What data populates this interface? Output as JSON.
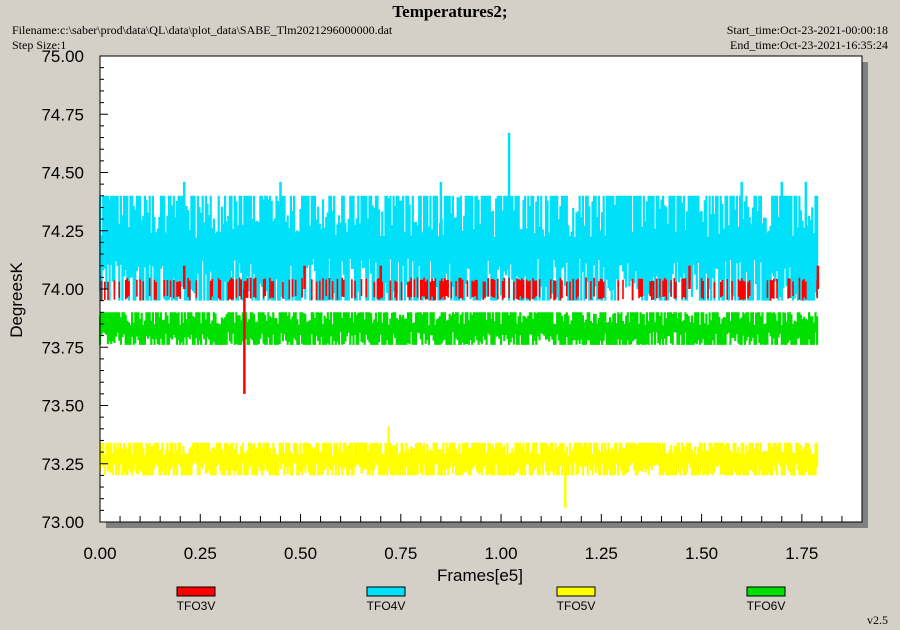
{
  "header": {
    "title": "Temperatures2;",
    "filename": "Filename:c:\\saber\\prod\\data\\QL\\data\\plot_data\\SABE_Tlm2021296000000.dat",
    "step_size": "Step Size:1",
    "start_time": "Start_time:Oct-23-2021-00:00:18",
    "end_time": "End_time:Oct-23-2021-16:35:24"
  },
  "footer": {
    "version": "v2.5"
  },
  "colors": {
    "TFO3V": "#ff0000",
    "TFO4V": "#00e0f8",
    "TFO5V": "#ffff00",
    "TFO6V": "#00e000"
  },
  "chart_data": {
    "type": "line",
    "title": "Temperatures2;",
    "xlabel": "Frames[e5]",
    "ylabel": "DegreesK",
    "xlim": [
      0.0,
      1.9
    ],
    "ylim": [
      73.0,
      75.0
    ],
    "xticks": [
      "0.00",
      "0.25",
      "0.50",
      "0.75",
      "1.00",
      "1.25",
      "1.50",
      "1.75"
    ],
    "yticks": [
      "73.00",
      "73.25",
      "73.50",
      "73.75",
      "74.00",
      "74.25",
      "74.50",
      "74.75",
      "75.00"
    ],
    "legend_position": "bottom",
    "series": [
      {
        "name": "TFO3V",
        "typical_range": [
          73.95,
          74.05
        ],
        "spikes": [
          {
            "x": 0.36,
            "y": 73.55
          },
          {
            "x": 0.21,
            "y": 74.1
          },
          {
            "x": 0.51,
            "y": 74.1
          },
          {
            "x": 0.7,
            "y": 74.1
          },
          {
            "x": 1.47,
            "y": 74.1
          },
          {
            "x": 1.79,
            "y": 74.1
          }
        ]
      },
      {
        "name": "TFO4V",
        "typical_range": [
          73.95,
          74.4
        ],
        "spikes": [
          {
            "x": 1.02,
            "y": 74.67
          },
          {
            "x": 0.21,
            "y": 74.46
          },
          {
            "x": 0.45,
            "y": 74.46
          },
          {
            "x": 0.85,
            "y": 74.46
          },
          {
            "x": 1.6,
            "y": 74.46
          },
          {
            "x": 1.7,
            "y": 74.46
          },
          {
            "x": 1.76,
            "y": 74.46
          }
        ]
      },
      {
        "name": "TFO5V",
        "typical_range": [
          73.2,
          73.34
        ],
        "spikes": [
          {
            "x": 0.72,
            "y": 73.41
          },
          {
            "x": 1.16,
            "y": 73.06
          }
        ]
      },
      {
        "name": "TFO6V",
        "typical_range": [
          73.76,
          73.9
        ],
        "spikes": []
      }
    ]
  }
}
